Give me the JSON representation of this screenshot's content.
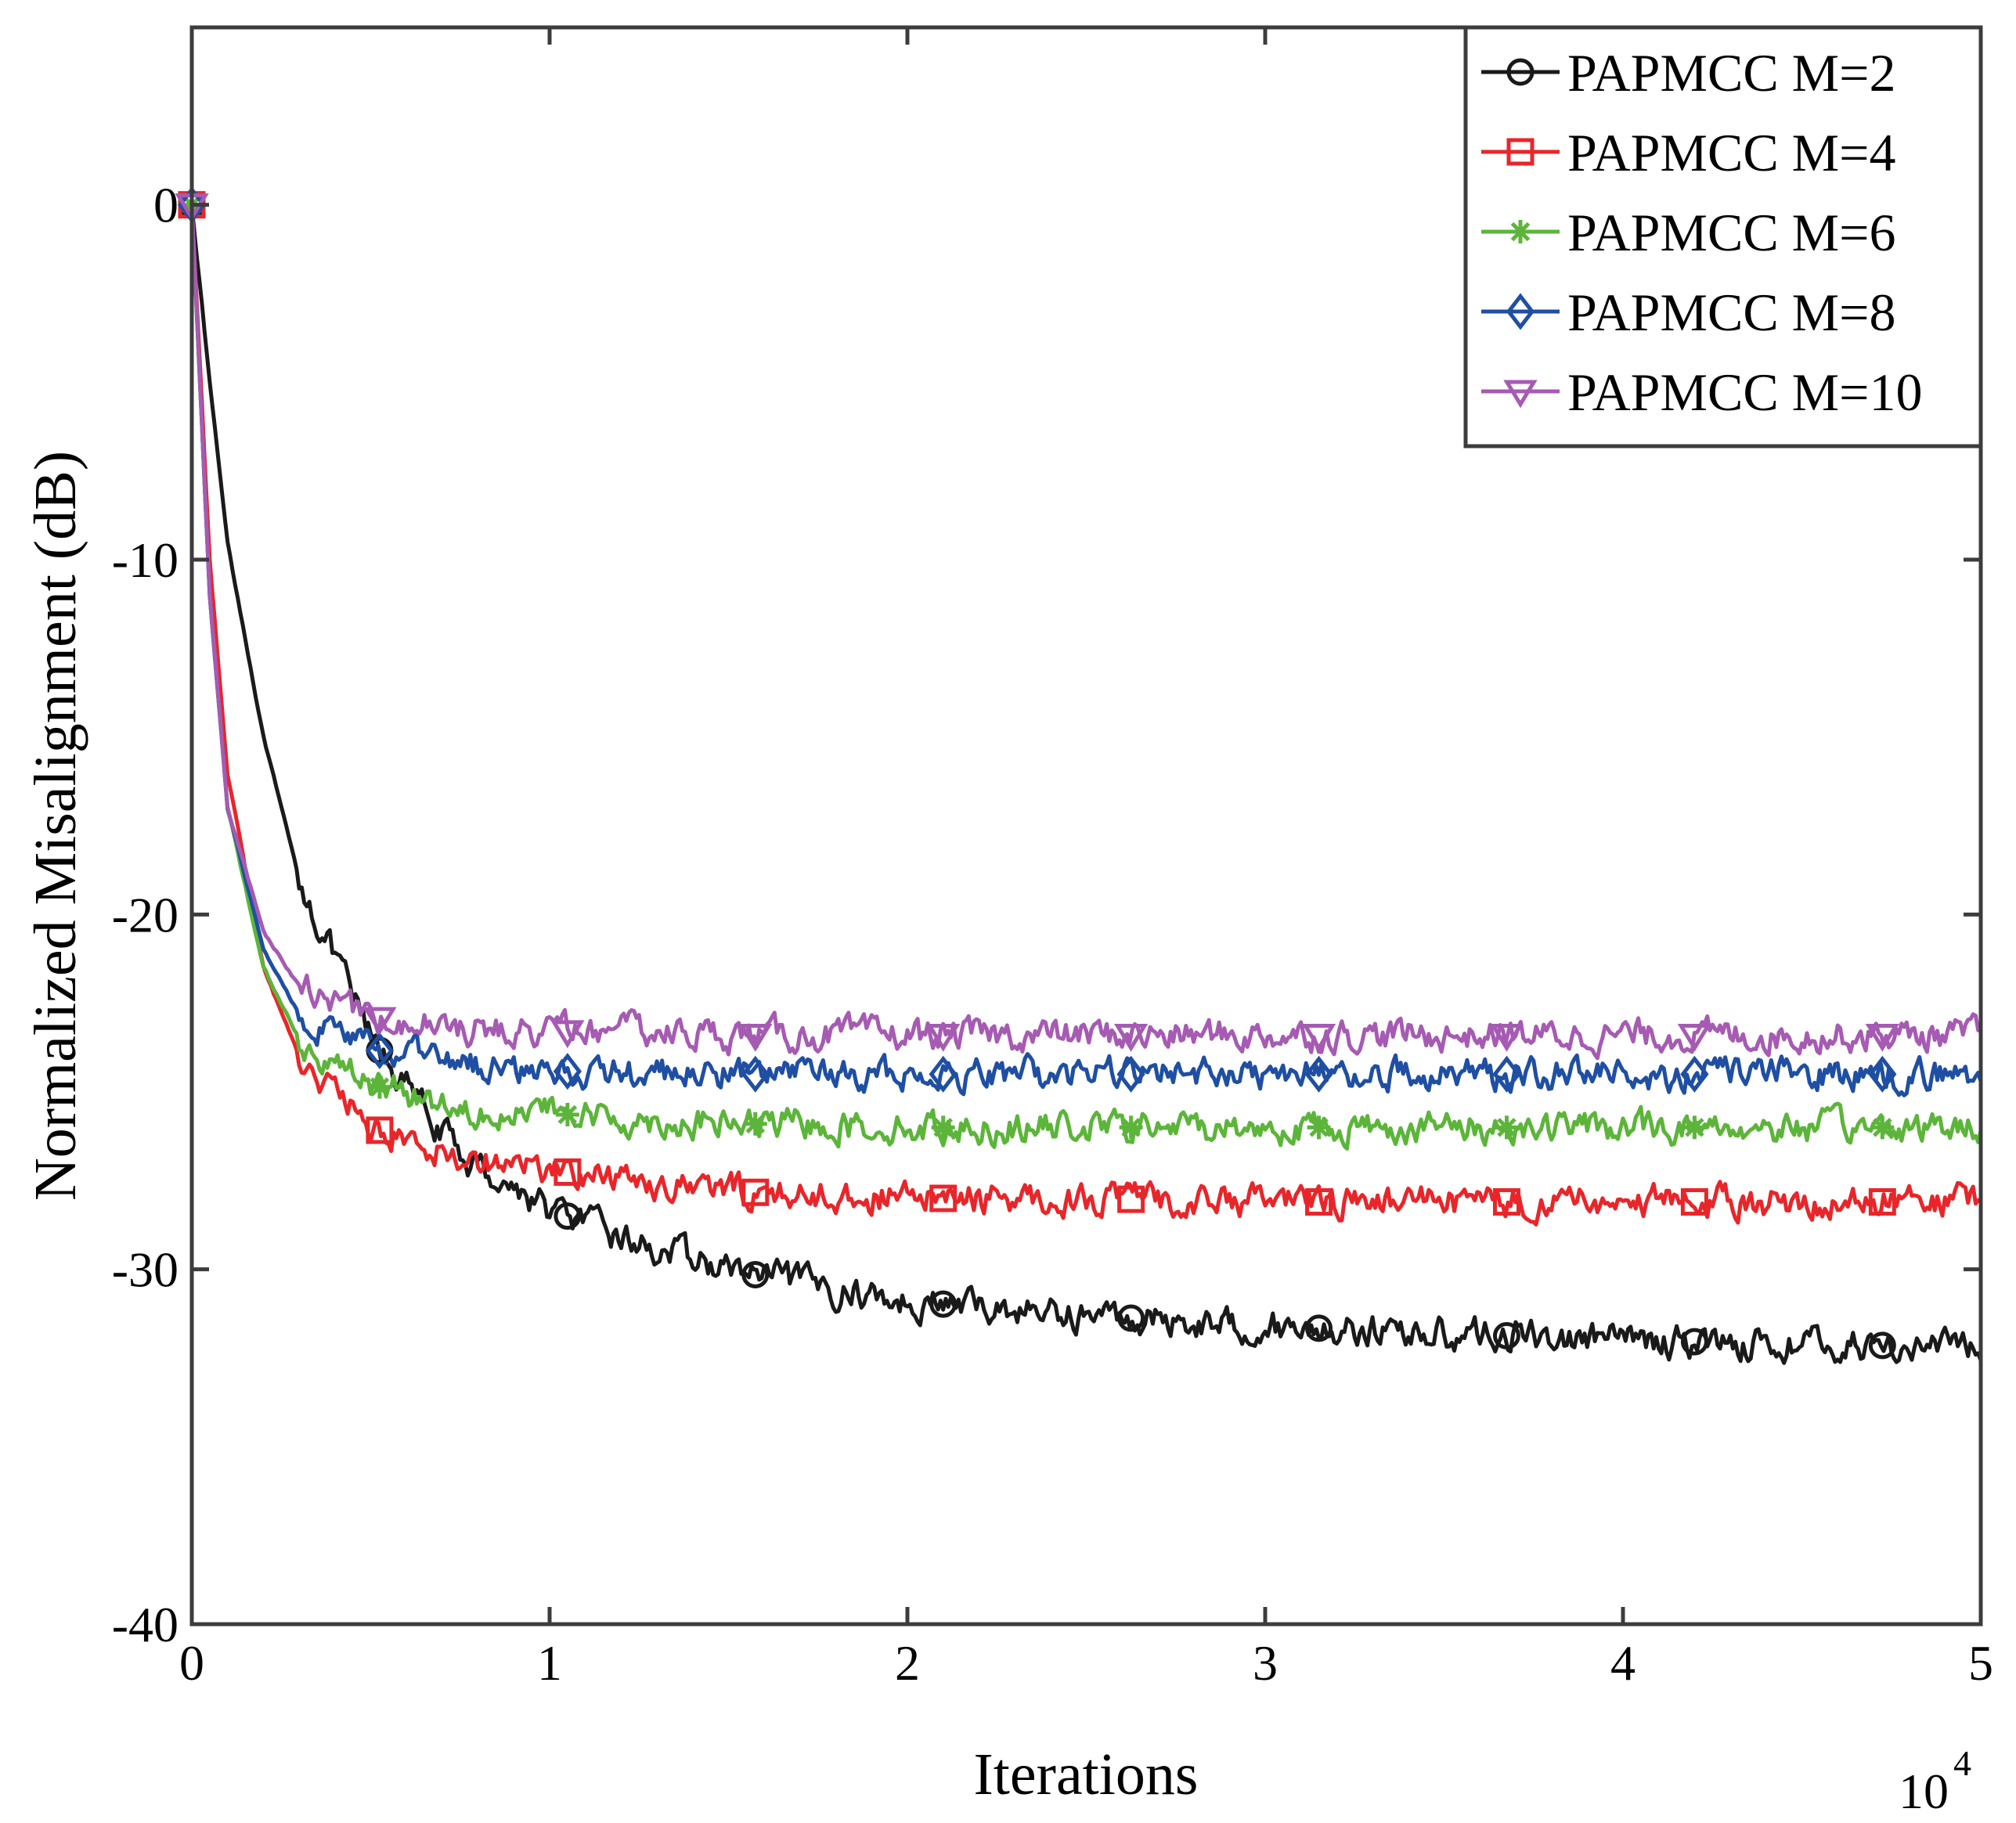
{
  "chart_data": {
    "type": "line",
    "title": "",
    "xlabel": "Iterations",
    "ylabel": "Normalized Misalignment (dB)",
    "x_multiplier": "10",
    "x_multiplier_exp": "4",
    "xlim": [
      0,
      5
    ],
    "ylim": [
      -40,
      5
    ],
    "xticks": [
      0,
      1,
      2,
      3,
      4,
      5
    ],
    "yticks": [
      0,
      -10,
      -20,
      -30,
      -40
    ],
    "xtick_labels": [
      "0",
      "1",
      "2",
      "3",
      "4",
      "5"
    ],
    "ytick_labels": [
      "0",
      "-10",
      "-20",
      "-30",
      "-40"
    ],
    "grid": false,
    "legend_position": "top-right",
    "x": [
      0,
      0.05,
      0.1,
      0.2,
      0.3,
      0.5,
      0.75,
      1.0,
      1.25,
      1.5,
      1.75,
      2.0,
      2.5,
      3.0,
      3.5,
      4.0,
      4.5,
      5.0
    ],
    "series": [
      {
        "name": "PAPMCC M=2",
        "color": "#1a1a1a",
        "marker": "circle",
        "values": [
          0,
          -5,
          -9.5,
          -15,
          -19,
          -23.5,
          -26.8,
          -28.3,
          -29.3,
          -30.0,
          -30.5,
          -30.9,
          -31.3,
          -31.6,
          -31.8,
          -32.0,
          -32.1,
          -32.2
        ]
      },
      {
        "name": "PAPMCC M=4",
        "color": "#e8262a",
        "marker": "square",
        "values": [
          0,
          -10,
          -16,
          -21.5,
          -24,
          -26.0,
          -26.8,
          -27.2,
          -27.5,
          -27.8,
          -27.9,
          -28.0,
          -28.0,
          -28.1,
          -28.1,
          -28.1,
          -28.1,
          -28.1
        ]
      },
      {
        "name": "PAPMCC M=6",
        "color": "#5cb53a",
        "marker": "asterisk",
        "values": [
          0,
          -11,
          -17,
          -21.5,
          -23.5,
          -24.8,
          -25.4,
          -25.6,
          -25.8,
          -25.9,
          -25.9,
          -26.0,
          -26.0,
          -26.0,
          -26.0,
          -26.0,
          -26.0,
          -26.0
        ]
      },
      {
        "name": "PAPMCC M=8",
        "color": "#1f4fa3",
        "marker": "diamond",
        "values": [
          0,
          -11,
          -17,
          -21.0,
          -22.8,
          -23.8,
          -24.2,
          -24.4,
          -24.5,
          -24.5,
          -24.5,
          -24.5,
          -24.5,
          -24.5,
          -24.5,
          -24.5,
          -24.5,
          -24.5
        ]
      },
      {
        "name": "PAPMCC M=10",
        "color": "#a65bb3",
        "marker": "triangle-down",
        "values": [
          0,
          -11,
          -17,
          -20.5,
          -22.0,
          -22.9,
          -23.2,
          -23.3,
          -23.3,
          -23.4,
          -23.4,
          -23.4,
          -23.4,
          -23.4,
          -23.4,
          -23.4,
          -23.4,
          -23.4
        ]
      }
    ]
  }
}
